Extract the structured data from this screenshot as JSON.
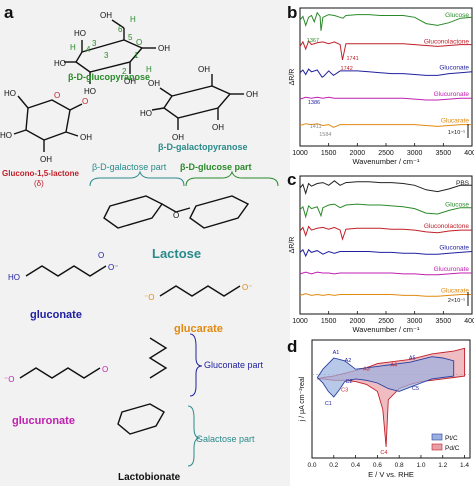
{
  "colors": {
    "panel_a_bg": "#f2f2f2",
    "glucose": "#2a8a2a",
    "galactose": "#2a8a8a",
    "lactone": "#c0202a",
    "gluconate": "#2020a0",
    "glucarate": "#e08a10",
    "glucuronate": "#c020b0",
    "lactose": "#2a8a8a",
    "black": "#111111",
    "ptc_fill": "#9ab0e0",
    "pdc_fill": "#e8a0a8",
    "pbs": "#222222"
  },
  "panel_labels": {
    "a": "a",
    "b": "b",
    "c": "c",
    "d": "d"
  },
  "panel_a": {
    "glucopyranose": "β-D-glucopyranose",
    "galactopyranose": "β-D-galactopyranose",
    "lactone_name": "Glucono-1,5-lactone",
    "lactone_num": "(δ)",
    "galactose_part": "β-D-galactose part",
    "glucose_part": "β-D-glucose part",
    "lactose": "Lactose",
    "gluconate": "gluconate",
    "glucarate": "glucarate",
    "glucuronate": "glucuronate",
    "lactobionate": "Lactobionate",
    "gluconate_part": "Gluconate  part",
    "galactose_part2": "Galactose  part",
    "atoms": {
      "oh": "OH",
      "ho": "HO",
      "h": "H",
      "o": "O",
      "minus_o": "⁻O",
      "o_minus": "O⁻"
    },
    "numbers": [
      "1",
      "2",
      "3",
      "4",
      "5",
      "6",
      "1'",
      "2'",
      "3'",
      "4'",
      "5'",
      "6'"
    ]
  },
  "chart_data": [
    {
      "panel": "b",
      "type": "line",
      "xlabel": "Wavenumber / cm⁻¹",
      "ylabel": "ΔR/R",
      "xticks": [
        1000,
        1500,
        2000,
        2500,
        3000,
        3500,
        4000
      ],
      "xlim": [
        1000,
        4000
      ],
      "scale_bar": "1×10⁻¹",
      "annotations": [
        "1367",
        "1741",
        "1742",
        "1386",
        "1411",
        "1584"
      ],
      "series": [
        {
          "name": "Glucose",
          "color": "#2a8a2a",
          "offset": 0.0,
          "x": [
            1000,
            1050,
            1100,
            1150,
            1200,
            1250,
            1300,
            1350,
            1367,
            1400,
            1500,
            1600,
            1700,
            1750,
            1800,
            2000,
            2200,
            2400,
            2600,
            2800,
            3000,
            3200,
            3400,
            3600,
            3800,
            4000
          ],
          "y": [
            0,
            0.4,
            -0.6,
            0.3,
            0.5,
            -0.2,
            0.8,
            0.4,
            -1.2,
            0.3,
            0.6,
            0.5,
            0.3,
            0.2,
            0.5,
            0.6,
            0.6,
            0.5,
            0.5,
            0.5,
            0.3,
            -0.4,
            -0.6,
            -0.3,
            0.2,
            0.3
          ]
        },
        {
          "name": "Gluconolactone",
          "color": "#c0202a",
          "offset": -1.0,
          "x": [
            1000,
            1050,
            1100,
            1150,
            1200,
            1300,
            1400,
            1500,
            1600,
            1700,
            1742,
            1800,
            2000,
            2200,
            2400,
            2600,
            2800,
            3000,
            3200,
            3400,
            3600,
            3800,
            4000
          ],
          "y": [
            0,
            0.5,
            -0.3,
            0.6,
            0.2,
            0.4,
            0.5,
            0.3,
            0.5,
            0.2,
            -1.5,
            0.3,
            0.3,
            0.3,
            0.3,
            0.3,
            0.3,
            0.2,
            0.1,
            0.0,
            0.1,
            0.2,
            0.2
          ]
        },
        {
          "name": "Gluconate",
          "color": "#2020a0",
          "offset": -2.0,
          "x": [
            1000,
            1050,
            1100,
            1150,
            1200,
            1300,
            1386,
            1411,
            1500,
            1584,
            1700,
            1800,
            2000,
            2200,
            2400,
            2600,
            2800,
            3000,
            3200,
            3400,
            3600,
            3800,
            4000
          ],
          "y": [
            0,
            0.3,
            -0.2,
            0.4,
            0.1,
            0.3,
            -0.5,
            -0.4,
            0.2,
            -0.3,
            0.2,
            0.2,
            0.2,
            0.1,
            0.0,
            -0.1,
            -0.1,
            -0.2,
            -0.3,
            -0.3,
            -0.1,
            0.0,
            0.1
          ]
        },
        {
          "name": "Glucuronate",
          "color": "#c020b0",
          "offset": -2.7,
          "x": [
            1000,
            1100,
            1200,
            1300,
            1400,
            1500,
            1600,
            1700,
            1800,
            2000,
            2200,
            2400,
            2600,
            2800,
            3000,
            3200,
            3400,
            3600,
            3800,
            4000
          ],
          "y": [
            0,
            0.2,
            0.1,
            0.2,
            0.1,
            0.2,
            0.1,
            0.1,
            0.1,
            0.1,
            0.1,
            0.1,
            0.1,
            0.1,
            0.0,
            -0.1,
            -0.1,
            0.0,
            0.1,
            0.1
          ]
        },
        {
          "name": "Glucarate",
          "color": "#e08a10",
          "offset": -3.4,
          "x": [
            1000,
            1100,
            1200,
            1300,
            1400,
            1500,
            1584,
            1700,
            1800,
            2000,
            2200,
            2400,
            2600,
            2800,
            3000,
            3200,
            3400,
            3600,
            3800,
            4000
          ],
          "y": [
            0,
            0.2,
            0.1,
            0.2,
            0.0,
            0.1,
            -0.2,
            0.1,
            0.1,
            0.1,
            0.1,
            0.1,
            0.1,
            0.1,
            0.1,
            0.0,
            -0.1,
            0.0,
            0.1,
            0.1
          ]
        }
      ]
    },
    {
      "panel": "c",
      "type": "line",
      "xlabel": "Wavenumber / cm⁻¹",
      "ylabel": "ΔR/R",
      "xticks": [
        1000,
        1500,
        2000,
        2500,
        3000,
        3500,
        4000
      ],
      "xlim": [
        1000,
        4000
      ],
      "scale_bar": "2×10⁻¹",
      "series": [
        {
          "name": "PBS",
          "color": "#222222",
          "offset": 0.0,
          "x": [
            1000,
            1050,
            1100,
            1150,
            1200,
            1300,
            1400,
            1500,
            1600,
            1700,
            1800,
            2000,
            2200,
            2400,
            2600,
            2800,
            3000,
            3200,
            3400,
            3600,
            3800,
            4000
          ],
          "y": [
            0,
            0.4,
            -0.6,
            0.5,
            0.2,
            0.5,
            0.6,
            0.3,
            0.8,
            0.3,
            0.6,
            0.7,
            0.7,
            0.6,
            0.6,
            0.5,
            0.3,
            -0.2,
            -0.4,
            -0.1,
            0.3,
            0.3
          ]
        },
        {
          "name": "Glucose",
          "color": "#2a8a2a",
          "offset": -0.6,
          "x": [
            1000,
            1050,
            1100,
            1150,
            1200,
            1300,
            1367,
            1400,
            1500,
            1600,
            1700,
            1800,
            2000,
            2200,
            2400,
            2600,
            2800,
            3000,
            3200,
            3400,
            3600,
            3800,
            4000
          ],
          "y": [
            0,
            0.3,
            -0.8,
            0.4,
            0.1,
            0.3,
            -0.7,
            0.2,
            0.5,
            0.6,
            0.2,
            0.5,
            0.6,
            0.5,
            0.5,
            0.4,
            0.3,
            0.1,
            -0.4,
            -0.5,
            -0.1,
            0.2,
            0.2
          ]
        },
        {
          "name": "Gluconolactone",
          "color": "#c0202a",
          "offset": -1.3,
          "x": [
            1000,
            1050,
            1100,
            1150,
            1200,
            1300,
            1400,
            1500,
            1600,
            1700,
            1742,
            1800,
            2000,
            2200,
            2400,
            2600,
            2800,
            3000,
            3200,
            3400,
            3600,
            3800,
            4000
          ],
          "y": [
            0,
            0.4,
            -0.5,
            0.5,
            0.1,
            0.3,
            0.4,
            0.2,
            0.4,
            0.1,
            -0.9,
            0.2,
            0.3,
            0.3,
            0.3,
            0.2,
            0.2,
            0.1,
            -0.1,
            -0.2,
            0.0,
            0.1,
            0.1
          ]
        },
        {
          "name": "Gluconate",
          "color": "#2020a0",
          "offset": -2.2,
          "x": [
            1000,
            1050,
            1100,
            1150,
            1200,
            1300,
            1400,
            1500,
            1600,
            1700,
            1800,
            2000,
            2200,
            2400,
            2600,
            2800,
            3000,
            3200,
            3400,
            3600,
            3800,
            4000
          ],
          "y": [
            0,
            0.3,
            -0.4,
            0.3,
            0.0,
            0.2,
            -0.2,
            0.1,
            -0.1,
            0.1,
            0.1,
            0.1,
            0.1,
            0.0,
            0.0,
            -0.1,
            -0.1,
            -0.2,
            -0.2,
            -0.1,
            0.0,
            0.1
          ]
        },
        {
          "name": "Glucuronate",
          "color": "#c020b0",
          "offset": -2.9,
          "x": [
            1000,
            1100,
            1200,
            1300,
            1400,
            1500,
            1600,
            1700,
            1800,
            2000,
            2200,
            2400,
            2600,
            2800,
            3000,
            3200,
            3400,
            3600,
            3800,
            4000
          ],
          "y": [
            0,
            0.2,
            0.0,
            0.2,
            0.1,
            0.1,
            0.0,
            0.1,
            0.1,
            0.1,
            0.1,
            0.1,
            0.1,
            0.0,
            0.0,
            -0.1,
            -0.1,
            0.0,
            0.1,
            0.1
          ]
        },
        {
          "name": "Glucarate",
          "color": "#e08a10",
          "offset": -3.5,
          "x": [
            1000,
            1100,
            1200,
            1300,
            1400,
            1500,
            1600,
            1700,
            1800,
            2000,
            2200,
            2400,
            2600,
            2800,
            3000,
            3200,
            3400,
            3600,
            3800,
            4000
          ],
          "y": [
            0,
            0.2,
            0.0,
            0.1,
            0.0,
            0.1,
            0.0,
            0.1,
            0.1,
            0.1,
            0.1,
            0.1,
            0.1,
            0.0,
            0.0,
            -0.1,
            -0.1,
            0.0,
            0.1,
            0.1
          ]
        }
      ]
    },
    {
      "panel": "d",
      "type": "line",
      "xlabel": "E / V vs. RHE",
      "ylabel": "j / μA cm⁻²real",
      "xticks": [
        0.0,
        0.2,
        0.4,
        0.6,
        0.8,
        1.0,
        1.2,
        1.4
      ],
      "xlim": [
        0.0,
        1.45
      ],
      "ylim": [
        -6,
        2.5
      ],
      "legend": "bottom-right",
      "peak_labels": [
        "A1",
        "A2",
        "A3",
        "A4",
        "A5",
        "C1",
        "C2",
        "C3",
        "C4",
        "C5"
      ],
      "series": [
        {
          "name": "Pt/C",
          "color": "#9ab0e0",
          "x": [
            0.05,
            0.1,
            0.2,
            0.3,
            0.4,
            0.5,
            0.6,
            0.7,
            0.8,
            0.9,
            1.0,
            1.1,
            1.2,
            1.3,
            1.3,
            1.2,
            1.1,
            1.0,
            0.9,
            0.8,
            0.7,
            0.6,
            0.5,
            0.4,
            0.3,
            0.25,
            0.2,
            0.15,
            0.1,
            0.05
          ],
          "y": [
            -0.2,
            0.4,
            1.2,
            1.0,
            0.4,
            0.5,
            0.6,
            0.7,
            0.8,
            0.9,
            1.1,
            1.3,
            1.2,
            1.0,
            -0.1,
            -0.2,
            -0.3,
            -0.6,
            -0.9,
            -1.2,
            -1.0,
            -0.6,
            -0.4,
            -0.3,
            -0.5,
            -1.1,
            -1.6,
            -1.2,
            -0.6,
            -0.2
          ]
        },
        {
          "name": "Pd/C",
          "color": "#e8a0a8",
          "x": [
            0.05,
            0.1,
            0.2,
            0.3,
            0.4,
            0.5,
            0.6,
            0.7,
            0.8,
            0.9,
            1.0,
            1.1,
            1.2,
            1.3,
            1.4,
            1.4,
            1.3,
            1.2,
            1.1,
            1.0,
            0.9,
            0.8,
            0.7,
            0.68,
            0.65,
            0.6,
            0.5,
            0.4,
            0.3,
            0.2,
            0.1,
            0.05
          ],
          "y": [
            -0.3,
            -0.2,
            -0.1,
            0.1,
            0.3,
            0.5,
            0.8,
            0.9,
            1.0,
            1.1,
            1.3,
            1.5,
            1.6,
            1.7,
            1.9,
            -0.1,
            -0.2,
            -0.3,
            -0.4,
            -0.5,
            -0.7,
            -1.0,
            -1.8,
            -5.2,
            -2.5,
            -1.2,
            -0.7,
            -0.5,
            -0.4,
            -0.4,
            -0.3,
            -0.3
          ]
        }
      ]
    }
  ]
}
